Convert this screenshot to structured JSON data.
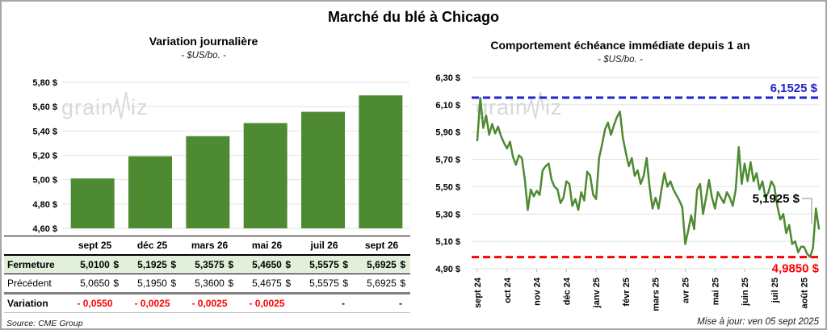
{
  "page": {
    "title": "Marché du blé à Chicago",
    "updated": "Mise à jour: ven 05 sept 2025",
    "source": "Source: CME Group",
    "watermark": "grainwiz"
  },
  "colors": {
    "green": "#4e8a32",
    "blue": "#2222cc",
    "red": "#ff0000",
    "grid": "#e2e2e2",
    "axis": "#bfbfbf",
    "watermark": "#d9d9d9",
    "row_green": "#e2efda",
    "callout_leader": "#a0a0a0"
  },
  "chart_data": [
    {
      "type": "bar",
      "title": "Variation journalière",
      "subtitle": "- $US/bo. -",
      "categories": [
        "sept 25",
        "déc 25",
        "mars 26",
        "mai 26",
        "juil 26",
        "sept 26"
      ],
      "values": [
        5.01,
        5.1925,
        5.3575,
        5.465,
        5.5575,
        5.6925
      ],
      "ylim": [
        4.6,
        5.8
      ],
      "ytick_values": [
        5.8,
        5.6,
        5.4,
        5.2,
        5.0,
        4.8,
        4.6
      ],
      "ytick_labels": [
        "5,80 $",
        "5,60 $",
        "5,40 $",
        "5,20 $",
        "5,00 $",
        "4,80 $",
        "4,60 $"
      ],
      "grid": true,
      "bar_color": "#4e8a32"
    },
    {
      "type": "line",
      "title": "Comportement échéance immédiate depuis 1 an",
      "subtitle": "- $US/bo. -",
      "x_labels": [
        "sept 24",
        "oct 24",
        "nov 24",
        "déc 24",
        "janv 25",
        "févr 25",
        "mars 25",
        "avr 25",
        "mai 25",
        "juin 25",
        "juil 25",
        "août 25"
      ],
      "points_per_month": 10,
      "values": [
        5.84,
        6.15,
        5.93,
        6.02,
        5.88,
        5.96,
        5.89,
        5.94,
        5.87,
        5.82,
        5.78,
        5.83,
        5.72,
        5.66,
        5.73,
        5.71,
        5.55,
        5.33,
        5.48,
        5.43,
        5.47,
        5.44,
        5.62,
        5.65,
        5.67,
        5.55,
        5.5,
        5.48,
        5.38,
        5.42,
        5.54,
        5.52,
        5.36,
        5.41,
        5.33,
        5.46,
        5.4,
        5.61,
        5.58,
        5.44,
        5.41,
        5.71,
        5.81,
        5.92,
        5.97,
        5.88,
        5.95,
        6.01,
        6.05,
        5.86,
        5.75,
        5.65,
        5.71,
        5.58,
        5.62,
        5.52,
        5.58,
        5.71,
        5.5,
        5.34,
        5.42,
        5.34,
        5.48,
        5.6,
        5.5,
        5.54,
        5.48,
        5.44,
        5.4,
        5.35,
        5.08,
        5.18,
        5.29,
        5.19,
        5.48,
        5.52,
        5.3,
        5.42,
        5.55,
        5.42,
        5.34,
        5.46,
        5.42,
        5.38,
        5.46,
        5.42,
        5.36,
        5.48,
        5.79,
        5.52,
        5.67,
        5.54,
        5.68,
        5.54,
        5.6,
        5.48,
        5.54,
        5.42,
        5.46,
        5.54,
        5.5,
        5.36,
        5.26,
        5.3,
        5.16,
        5.22,
        5.08,
        5.1,
        5.02,
        5.06,
        5.06,
        5.01,
        4.985,
        5.05,
        5.34,
        5.1925
      ],
      "ylim": [
        4.9,
        6.3
      ],
      "ytick_values": [
        6.3,
        6.1,
        5.9,
        5.7,
        5.5,
        5.3,
        5.1,
        4.9
      ],
      "ytick_labels": [
        "6,30 $",
        "6,10 $",
        "5,90 $",
        "5,70 $",
        "5,50 $",
        "5,30 $",
        "5,10 $",
        "4,90 $"
      ],
      "grid": true,
      "line_color": "#4e8a32",
      "max_line": {
        "value": 6.1525,
        "label": "6,1525 $",
        "color": "#2222cc"
      },
      "min_line": {
        "value": 4.985,
        "label": "4,9850 $",
        "color": "#ff0000"
      },
      "last_point": {
        "value": 5.1925,
        "label": "5,1925 $"
      }
    }
  ],
  "table": {
    "currency": "$",
    "headers": [
      "",
      "sept 25",
      "déc 25",
      "mars 26",
      "mai 26",
      "juil 26",
      "sept 26"
    ],
    "rows": [
      {
        "label": "Fermeture",
        "style": "close",
        "values": [
          "5,0100",
          "5,1925",
          "5,3575",
          "5,4650",
          "5,5575",
          "5,6925"
        ]
      },
      {
        "label": "Précédent",
        "style": "previous",
        "values": [
          "5,0650",
          "5,1950",
          "5,3600",
          "5,4675",
          "5,5575",
          "5,6925"
        ]
      },
      {
        "label": "Variation",
        "style": "variation",
        "values": [
          "- 0,0550",
          "- 0,0025",
          "- 0,0025",
          "- 0,0025",
          "-",
          "-"
        ]
      }
    ]
  }
}
